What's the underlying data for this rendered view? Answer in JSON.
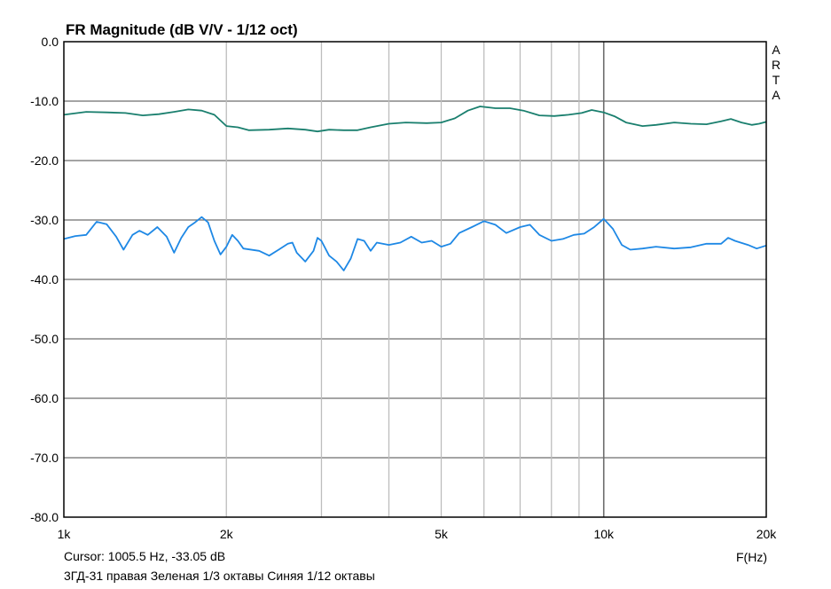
{
  "chart_data": {
    "type": "line",
    "title": "FR Magnitude (dB V/V - 1/12 oct)",
    "xlabel": "F(Hz)",
    "ylabel": "",
    "xscale": "log",
    "xlim": [
      1000,
      20000
    ],
    "ylim": [
      -80,
      0
    ],
    "grid": true,
    "y_ticks": [
      0,
      -10,
      -20,
      -30,
      -40,
      -50,
      -60,
      -70,
      -80
    ],
    "y_tick_labels": [
      "0.0",
      "-10.0",
      "-20.0",
      "-30.0",
      "-40.0",
      "-50.0",
      "-60.0",
      "-70.0",
      "-80.0"
    ],
    "x_gridlines": [
      2000,
      3000,
      4000,
      5000,
      6000,
      7000,
      8000,
      9000,
      10000
    ],
    "x_major_gridline": 10000,
    "x_ticks": [
      {
        "value": 1000,
        "label": "1k"
      },
      {
        "value": 2000,
        "label": "2k"
      },
      {
        "value": 5000,
        "label": "5k"
      },
      {
        "value": 10000,
        "label": "10k"
      },
      {
        "value": 20000,
        "label": "20k"
      }
    ],
    "brand_letters": [
      "A",
      "R",
      "T",
      "A"
    ],
    "series": [
      {
        "color": "#1a7f6e",
        "points": [
          [
            1000,
            -12.3
          ],
          [
            1100,
            -11.8
          ],
          [
            1200,
            -11.9
          ],
          [
            1300,
            -12
          ],
          [
            1400,
            -12.4
          ],
          [
            1500,
            -12.2
          ],
          [
            1600,
            -11.8
          ],
          [
            1700,
            -11.4
          ],
          [
            1800,
            -11.6
          ],
          [
            1900,
            -12.3
          ],
          [
            2000,
            -14.2
          ],
          [
            2100,
            -14.4
          ],
          [
            2200,
            -14.9
          ],
          [
            2400,
            -14.8
          ],
          [
            2600,
            -14.6
          ],
          [
            2800,
            -14.8
          ],
          [
            2950,
            -15.1
          ],
          [
            3100,
            -14.8
          ],
          [
            3300,
            -14.9
          ],
          [
            3500,
            -14.9
          ],
          [
            3700,
            -14.4
          ],
          [
            4000,
            -13.8
          ],
          [
            4300,
            -13.6
          ],
          [
            4700,
            -13.7
          ],
          [
            5000,
            -13.6
          ],
          [
            5300,
            -12.9
          ],
          [
            5600,
            -11.6
          ],
          [
            5900,
            -10.9
          ],
          [
            6300,
            -11.2
          ],
          [
            6700,
            -11.2
          ],
          [
            7100,
            -11.6
          ],
          [
            7600,
            -12.4
          ],
          [
            8100,
            -12.5
          ],
          [
            8600,
            -12.3
          ],
          [
            9100,
            -12
          ],
          [
            9500,
            -11.5
          ],
          [
            10000,
            -11.9
          ],
          [
            10500,
            -12.6
          ],
          [
            11000,
            -13.6
          ],
          [
            11800,
            -14.2
          ],
          [
            12500,
            -14
          ],
          [
            13500,
            -13.6
          ],
          [
            14500,
            -13.8
          ],
          [
            15500,
            -13.9
          ],
          [
            16500,
            -13.4
          ],
          [
            17200,
            -13
          ],
          [
            18000,
            -13.6
          ],
          [
            18800,
            -14
          ],
          [
            19400,
            -13.8
          ],
          [
            20000,
            -13.5
          ]
        ]
      },
      {
        "color": "#1e88e5",
        "points": [
          [
            1000,
            -33.2
          ],
          [
            1050,
            -32.7
          ],
          [
            1100,
            -32.5
          ],
          [
            1150,
            -30.3
          ],
          [
            1200,
            -30.7
          ],
          [
            1250,
            -32.8
          ],
          [
            1290,
            -35
          ],
          [
            1340,
            -32.5
          ],
          [
            1380,
            -31.8
          ],
          [
            1430,
            -32.5
          ],
          [
            1490,
            -31.2
          ],
          [
            1550,
            -32.8
          ],
          [
            1600,
            -35.5
          ],
          [
            1650,
            -33
          ],
          [
            1700,
            -31.2
          ],
          [
            1750,
            -30.4
          ],
          [
            1800,
            -29.5
          ],
          [
            1850,
            -30.4
          ],
          [
            1900,
            -33.5
          ],
          [
            1950,
            -35.8
          ],
          [
            2000,
            -34.5
          ],
          [
            2050,
            -32.5
          ],
          [
            2100,
            -33.5
          ],
          [
            2150,
            -34.8
          ],
          [
            2300,
            -35.2
          ],
          [
            2400,
            -36
          ],
          [
            2500,
            -35
          ],
          [
            2600,
            -34
          ],
          [
            2650,
            -33.8
          ],
          [
            2700,
            -35.5
          ],
          [
            2800,
            -37
          ],
          [
            2900,
            -35.2
          ],
          [
            2950,
            -33
          ],
          [
            3000,
            -33.5
          ],
          [
            3100,
            -36
          ],
          [
            3200,
            -37
          ],
          [
            3300,
            -38.5
          ],
          [
            3400,
            -36.5
          ],
          [
            3500,
            -33.2
          ],
          [
            3600,
            -33.5
          ],
          [
            3700,
            -35.2
          ],
          [
            3800,
            -33.8
          ],
          [
            4000,
            -34.2
          ],
          [
            4200,
            -33.8
          ],
          [
            4400,
            -32.8
          ],
          [
            4600,
            -33.8
          ],
          [
            4800,
            -33.5
          ],
          [
            5000,
            -34.5
          ],
          [
            5200,
            -34
          ],
          [
            5400,
            -32.2
          ],
          [
            5700,
            -31.2
          ],
          [
            6000,
            -30.2
          ],
          [
            6300,
            -30.8
          ],
          [
            6600,
            -32.2
          ],
          [
            7000,
            -31.2
          ],
          [
            7300,
            -30.8
          ],
          [
            7600,
            -32.5
          ],
          [
            8000,
            -33.5
          ],
          [
            8400,
            -33.2
          ],
          [
            8800,
            -32.5
          ],
          [
            9200,
            -32.3
          ],
          [
            9600,
            -31.2
          ],
          [
            10000,
            -29.8
          ],
          [
            10400,
            -31.5
          ],
          [
            10800,
            -34.2
          ],
          [
            11200,
            -35
          ],
          [
            11800,
            -34.8
          ],
          [
            12500,
            -34.5
          ],
          [
            13500,
            -34.8
          ],
          [
            14500,
            -34.6
          ],
          [
            15500,
            -34
          ],
          [
            16500,
            -34
          ],
          [
            17000,
            -33
          ],
          [
            17500,
            -33.5
          ],
          [
            18500,
            -34.2
          ],
          [
            19200,
            -34.8
          ],
          [
            20000,
            -34.3
          ]
        ]
      }
    ]
  },
  "cursor_readout": "Cursor: 1005.5 Hz, -33.05 dB",
  "caption": "3ГД-31 правая Зеленая 1/3 октавы Синяя 1/12 октавы"
}
